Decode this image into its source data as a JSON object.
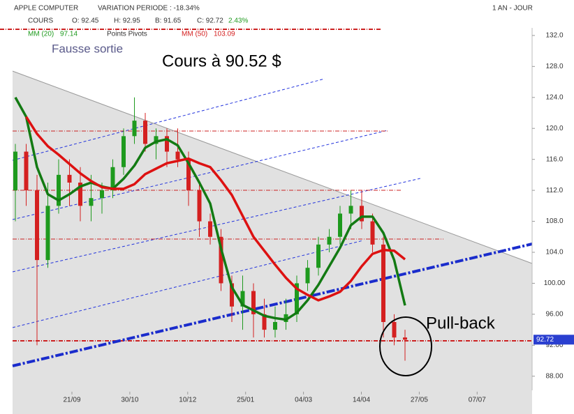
{
  "chart_data": {
    "type": "candlestick",
    "title": "APPLE COMPUTER",
    "subtitle": "VARIATION PERIODE : -18.34%",
    "period": "1 AN - JOUR",
    "quote": {
      "label": "COURS",
      "open": "O: 92.45",
      "high": "H: 92.95",
      "low": "B: 91.65",
      "close": "C: 92.72",
      "change": "2.43%"
    },
    "pivots_label": "Points Pivots",
    "annotations": [
      "Fausse sortie",
      "Cours à 90.52 $",
      "Pull-back"
    ],
    "last_price_label": "92.72",
    "x_labels": [
      "21/09",
      "30/10",
      "10/12",
      "25/01",
      "04/03",
      "14/04",
      "27/05",
      "07/07"
    ],
    "open": [
      112,
      117,
      112,
      103,
      110,
      114,
      113,
      110,
      111,
      112,
      115,
      119,
      121,
      118,
      119,
      117,
      116,
      112,
      108,
      106,
      100,
      97,
      99,
      96,
      94,
      95,
      96,
      100,
      102,
      105,
      106,
      109,
      110,
      108,
      105,
      95,
      93
    ],
    "high": [
      118,
      118,
      114,
      113,
      116,
      116,
      115,
      114,
      113,
      116,
      120,
      124,
      122,
      120,
      120,
      120,
      117,
      113,
      109,
      107,
      101,
      101,
      100,
      98,
      97,
      98,
      101,
      103,
      106,
      107,
      110,
      112,
      112,
      109,
      106,
      96,
      94
    ],
    "low": [
      108,
      110,
      92,
      102,
      109,
      110,
      108,
      108,
      109,
      111,
      114,
      118,
      117,
      116,
      115,
      115,
      110,
      106,
      105,
      99,
      95,
      94,
      93,
      93,
      93,
      94,
      95,
      99,
      101,
      104,
      105,
      107,
      107,
      104,
      93,
      92,
      90
    ],
    "close": [
      117,
      112,
      103,
      110,
      114,
      113,
      110,
      111,
      112,
      115,
      119,
      121,
      118,
      119,
      117,
      116,
      112,
      108,
      106,
      100,
      97,
      99,
      96,
      94,
      95,
      96,
      100,
      102,
      105,
      106,
      109,
      110,
      108,
      105,
      95,
      93,
      92.72
    ],
    "up_color": "#1e9a1e",
    "down_color": "#d42020",
    "series": [
      {
        "name": "MM (20)",
        "color": "#137a13",
        "value_label": "97.14",
        "values": [
          124,
          121.5,
          115,
          111.5,
          110.7,
          111.5,
          112.5,
          113,
          112.5,
          112.2,
          113.5,
          115.2,
          117.5,
          118.3,
          118.6,
          117.8,
          115.5,
          113,
          110.3,
          104.5,
          99.5,
          97.2,
          96.5,
          95.8,
          95.5,
          95.3,
          96.2,
          97.8,
          99.8,
          102.2,
          104.6,
          107.5,
          108.6,
          108.6,
          106.5,
          103,
          97.14
        ]
      },
      {
        "name": "MM (50)",
        "color": "#dd1111",
        "value_label": "103.09",
        "values": [
          null,
          121.5,
          119.3,
          117.7,
          116.6,
          115.4,
          114.2,
          113.2,
          112.4,
          112.2,
          112.2,
          112.8,
          114.1,
          114.8,
          115.5,
          115.8,
          116.1,
          115.5,
          115,
          113.3,
          111.4,
          108.7,
          106,
          104.2,
          102.4,
          100.7,
          99.3,
          98.5,
          97.8,
          98.3,
          98.9,
          100.3,
          102.2,
          103.8,
          104.3,
          104.2,
          103.09
        ]
      }
    ],
    "ylim": [
      86,
      132.8
    ],
    "yticks": [
      {
        "value": 88,
        "label": "88.00"
      },
      {
        "value": 92,
        "label": "92.00"
      },
      {
        "value": 96,
        "label": "96.00"
      },
      {
        "value": 100,
        "label": "100.00"
      },
      {
        "value": 104,
        "label": "104.0"
      },
      {
        "value": 108,
        "label": "108.0"
      },
      {
        "value": 112,
        "label": "112.0"
      },
      {
        "value": 116,
        "label": "116.0"
      },
      {
        "value": 120,
        "label": "120.0"
      },
      {
        "value": 124,
        "label": "124.0"
      },
      {
        "value": 128,
        "label": "128.0"
      },
      {
        "value": 132,
        "label": "132.0"
      }
    ]
  }
}
